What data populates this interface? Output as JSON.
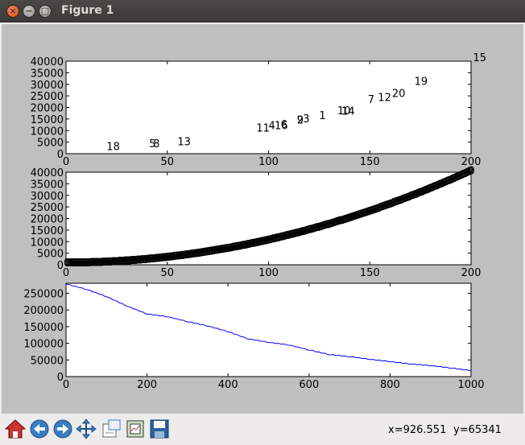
{
  "window": {
    "title": "Figure 1"
  },
  "toolbar": {
    "buttons": [
      {
        "name": "home-icon"
      },
      {
        "name": "back-arrow-icon"
      },
      {
        "name": "forward-arrow-icon"
      },
      {
        "name": "pan-icon"
      },
      {
        "name": "zoom-icon"
      },
      {
        "name": "subplots-icon"
      },
      {
        "name": "save-icon"
      }
    ],
    "x_readout": "x=926.551",
    "y_readout": "y=65341"
  },
  "chart_data": [
    {
      "type": "scatter",
      "marker": "text",
      "xlim": [
        0,
        200
      ],
      "ylim": [
        0,
        40000
      ],
      "xticks": [
        "0",
        "50",
        "100",
        "150",
        "200"
      ],
      "yticks": [
        "0",
        "5000",
        "10000",
        "15000",
        "20000",
        "25000",
        "30000",
        "35000",
        "40000"
      ],
      "points": [
        {
          "label": "18",
          "x": 20,
          "y": 1500
        },
        {
          "label": "5",
          "x": 41,
          "y": 2800
        },
        {
          "label": "8",
          "x": 43,
          "y": 2800
        },
        {
          "label": "13",
          "x": 55,
          "y": 3700
        },
        {
          "label": "11",
          "x": 94,
          "y": 9500
        },
        {
          "label": "4",
          "x": 100,
          "y": 10600
        },
        {
          "label": "16",
          "x": 103,
          "y": 10600
        },
        {
          "label": "6",
          "x": 106,
          "y": 11200
        },
        {
          "label": "9",
          "x": 114,
          "y": 13000
        },
        {
          "label": "2",
          "x": 114,
          "y": 13100
        },
        {
          "label": "3",
          "x": 117,
          "y": 13500
        },
        {
          "label": "1",
          "x": 125,
          "y": 15000
        },
        {
          "label": "10",
          "x": 134,
          "y": 17000
        },
        {
          "label": "14",
          "x": 136,
          "y": 16800
        },
        {
          "label": "7",
          "x": 149,
          "y": 22000
        },
        {
          "label": "12",
          "x": 154,
          "y": 22800
        },
        {
          "label": "20",
          "x": 161,
          "y": 24500
        },
        {
          "label": "19",
          "x": 172,
          "y": 29800
        },
        {
          "label": "15",
          "x": 201,
          "y": 40000
        }
      ]
    },
    {
      "type": "scatter",
      "marker": "text",
      "description_curve": "y = x^2 + 1000",
      "xlim": [
        0,
        200
      ],
      "ylim": [
        0,
        40000
      ],
      "xticks": [
        "0",
        "50",
        "100",
        "150",
        "200"
      ],
      "yticks": [
        "0",
        "5000",
        "10000",
        "15000",
        "20000",
        "25000",
        "30000",
        "35000",
        "40000"
      ]
    },
    {
      "type": "line",
      "color": "#0000ff",
      "xlim": [
        0,
        1000
      ],
      "ylim": [
        0,
        280000
      ],
      "xticks": [
        "0",
        "200",
        "400",
        "600",
        "800",
        "1000"
      ],
      "yticks": [
        "0",
        "50000",
        "100000",
        "150000",
        "200000",
        "250000"
      ],
      "x": [
        0,
        50,
        100,
        150,
        200,
        250,
        300,
        350,
        400,
        450,
        500,
        550,
        600,
        650,
        700,
        750,
        800,
        850,
        900,
        950,
        1000
      ],
      "y": [
        278000,
        262000,
        240000,
        212000,
        188000,
        180000,
        165000,
        152000,
        135000,
        113000,
        103000,
        95000,
        80000,
        66000,
        60000,
        52000,
        45000,
        38000,
        33000,
        26000,
        18000
      ]
    }
  ]
}
